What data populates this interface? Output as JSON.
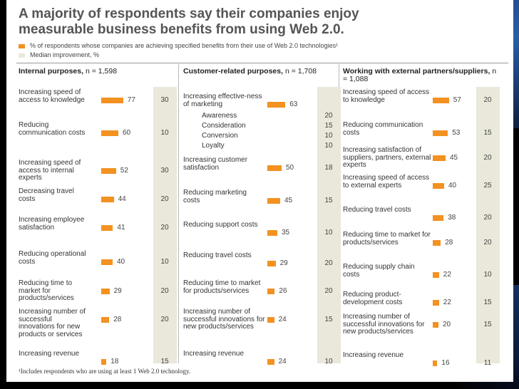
{
  "title": "A majority of respondents say their companies enjoy measurable business benefits from using Web 2.0.",
  "legend": {
    "pct": "% of respondents whose companies are achieving specified benefits from their use of Web 2.0 technologies¹",
    "median": "Median improvement, %"
  },
  "colors": {
    "bar": "#f39121",
    "median_bg": "#e9e8da"
  },
  "footnote": "¹Includes respondents who are using at least 1 Web 2.0 technology.",
  "chart_data": [
    {
      "type": "bar",
      "title": "Internal purposes,",
      "subtitle": "n = 1,598",
      "categories": [
        "Increasing speed of access to knowledge",
        "Reducing communication costs",
        "Increasing speed of access to internal experts",
        "Decreasing travel costs",
        "Increasing employee satisfaction",
        "Reducing operational costs",
        "Reducing time to market for products/services",
        "Increasing number of successful innovations for new products or services",
        "Increasing revenue"
      ],
      "values": [
        77,
        60,
        52,
        44,
        41,
        40,
        29,
        28,
        18
      ],
      "median_improvement": [
        30,
        10,
        30,
        20,
        20,
        10,
        20,
        20,
        15
      ]
    },
    {
      "type": "bar",
      "title": "Customer-related purposes,",
      "subtitle": "n = 1,708",
      "categories": [
        "Increasing effective-ness of marketing",
        "Increasing customer satisfaction",
        "Reducing marketing costs",
        "Reducing support costs",
        "Reducing travel costs",
        "Reducing time to market for products/services",
        "Increasing number of successful innovations for new products/services",
        "Increasing revenue"
      ],
      "values": [
        63,
        50,
        45,
        35,
        29,
        26,
        24,
        24
      ],
      "median_improvement": [
        null,
        18,
        15,
        10,
        20,
        20,
        15,
        10
      ],
      "marketing_breakdown": [
        {
          "label": "Awareness",
          "median": 20
        },
        {
          "label": "Consideration",
          "median": 15
        },
        {
          "label": "Conversion",
          "median": 10
        },
        {
          "label": "Loyalty",
          "median": 10
        }
      ]
    },
    {
      "type": "bar",
      "title": "Working with external partners/suppliers,",
      "subtitle": "n = 1,088",
      "categories": [
        "Increasing speed of access to knowledge",
        "Reducing communication costs",
        "Increasing satisfaction of suppliers, partners, external experts",
        "Increasing speed of access to external experts",
        "Reducing travel costs",
        "Reducing time to market for products/services",
        "Reducing supply chain costs",
        "Reducing product-development costs",
        "Increasing number of successful innovations for new products/services",
        "Increasing revenue"
      ],
      "values": [
        57,
        53,
        45,
        40,
        38,
        28,
        22,
        22,
        20,
        16
      ],
      "median_improvement": [
        20,
        15,
        20,
        25,
        20,
        20,
        10,
        15,
        15,
        11
      ]
    }
  ]
}
